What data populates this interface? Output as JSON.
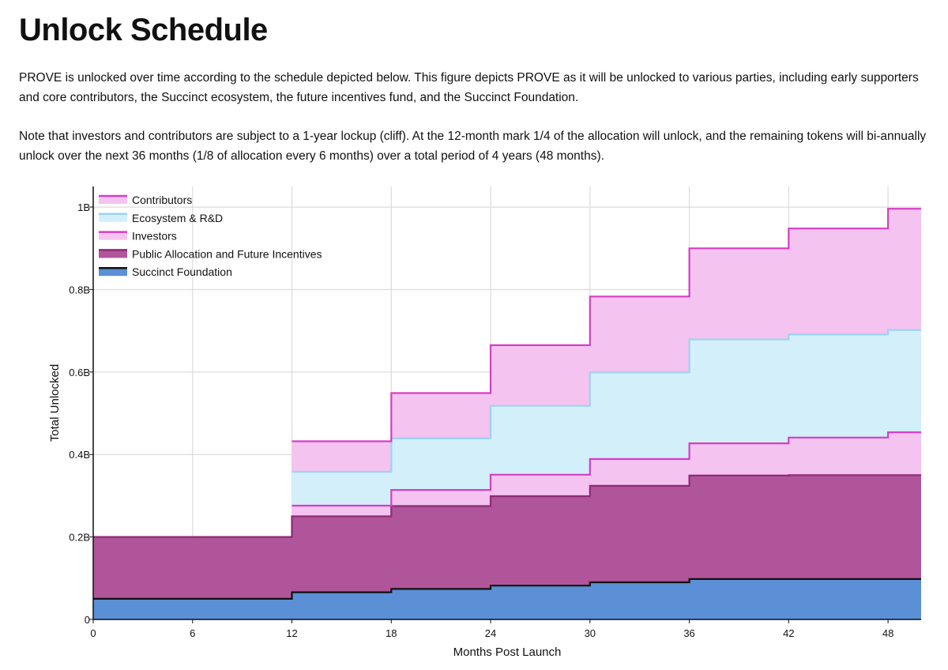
{
  "page": {
    "title": "Unlock Schedule",
    "paragraph_1": "PROVE is unlocked over time according to the schedule depicted below. This figure depicts PROVE as it will be unlocked to various parties, including early supporters and core contributors, the Succinct ecosystem, the future incentives fund, and the Succinct Foundation.",
    "paragraph_2": "Note that investors and contributors are subject to a 1-year lockup (cliff). At the 12-month mark 1/4 of the allocation will unlock, and the remaining tokens will bi-annually unlock over the next 36 months (1/8 of allocation every 6 months) over a total period of 4 years (48 months)."
  },
  "chart_data": {
    "type": "area",
    "stacked": true,
    "step": true,
    "xlabel": "Months Post Launch",
    "ylabel": "Total Unlocked",
    "xlim": [
      0,
      50
    ],
    "ylim": [
      0,
      1050000000
    ],
    "x_ticks": [
      0,
      6,
      12,
      18,
      24,
      30,
      36,
      42,
      48
    ],
    "y_ticks": [
      0,
      200000000,
      400000000,
      600000000,
      800000000,
      1000000000
    ],
    "y_tick_labels": [
      "0",
      "0.2B",
      "0.4B",
      "0.6B",
      "0.8B",
      "1B"
    ],
    "grid": true,
    "legend_position": "top-left",
    "x": [
      0,
      6,
      12,
      18,
      24,
      30,
      36,
      42,
      48,
      50
    ],
    "series": [
      {
        "name": "Succinct Foundation",
        "fill": "#5b8fd6",
        "stroke": "#111111",
        "values": [
          50000000,
          50000000,
          66000000,
          74000000,
          82000000,
          90000000,
          98000000,
          98000000,
          98000000,
          98000000
        ]
      },
      {
        "name": "Public Allocation and Future Incentives",
        "fill": "#b05599",
        "stroke": "#8e2a78",
        "values": [
          150000000,
          150000000,
          184000000,
          201000000,
          217000000,
          234000000,
          251000000,
          252000000,
          252000000,
          252000000
        ]
      },
      {
        "name": "Investors",
        "fill": "#f4c3ef",
        "stroke": "#d63ec4",
        "values": [
          0,
          0,
          26000000,
          39000000,
          52000000,
          65000000,
          78000000,
          91000000,
          104000000,
          104000000
        ]
      },
      {
        "name": "Ecosystem & R&D",
        "fill": "#d3effa",
        "stroke": "#9cd3ef",
        "values": [
          0,
          0,
          82000000,
          125000000,
          167000000,
          210000000,
          252000000,
          250000000,
          248000000,
          248000000
        ]
      },
      {
        "name": "Contributors",
        "fill": "#f4c3ef",
        "stroke": "#d63ec4",
        "values": [
          0,
          0,
          74000000,
          110000000,
          147000000,
          184000000,
          221000000,
          257000000,
          294000000,
          294000000
        ]
      }
    ],
    "legend_order": [
      "Contributors",
      "Ecosystem & R&D",
      "Investors",
      "Public Allocation and Future Incentives",
      "Succinct Foundation"
    ]
  }
}
